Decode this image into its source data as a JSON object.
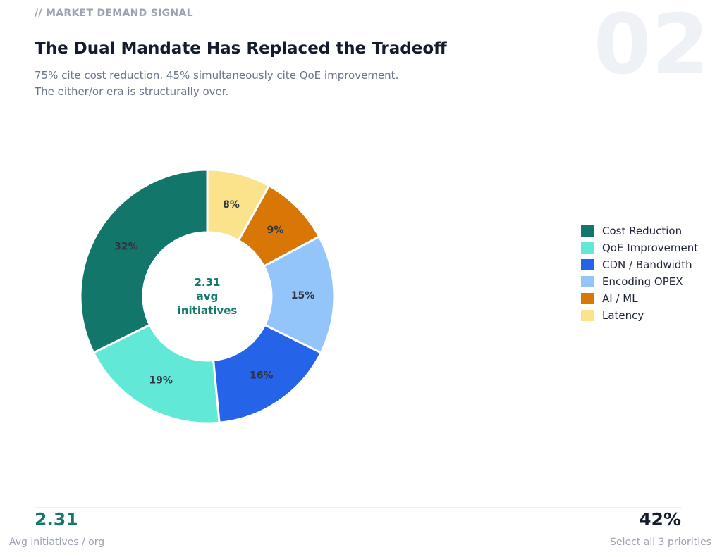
{
  "header": {
    "eyebrow": "// MARKET DEMAND SIGNAL",
    "slide_number": "02",
    "title": "The Dual Mandate Has Replaced the Tradeoff",
    "subtitle_line1": "75% cite cost reduction. 45% simultaneously cite QoE improvement.",
    "subtitle_line2": "The either/or era is structurally over."
  },
  "chart_data": {
    "type": "pie",
    "donut": true,
    "categories": [
      "Cost Reduction",
      "QoE Improvement",
      "CDN / Bandwidth",
      "Encoding OPEX",
      "AI / ML",
      "Latency"
    ],
    "values": [
      32,
      19,
      16,
      15,
      9,
      8
    ],
    "data_labels": [
      "32%",
      "19%",
      "16%",
      "15%",
      "9%",
      "8%"
    ],
    "colors": [
      "#13766b",
      "#62e8d6",
      "#2563e8",
      "#93c5fb",
      "#d97706",
      "#fbe38c"
    ],
    "center_label": [
      "2.31",
      "avg",
      "initiatives"
    ],
    "legend_position": "right"
  },
  "footer": {
    "left_value": "2.31",
    "left_label": "Avg initiatives / org",
    "right_value": "42%",
    "right_label": "Select all 3 priorities"
  }
}
